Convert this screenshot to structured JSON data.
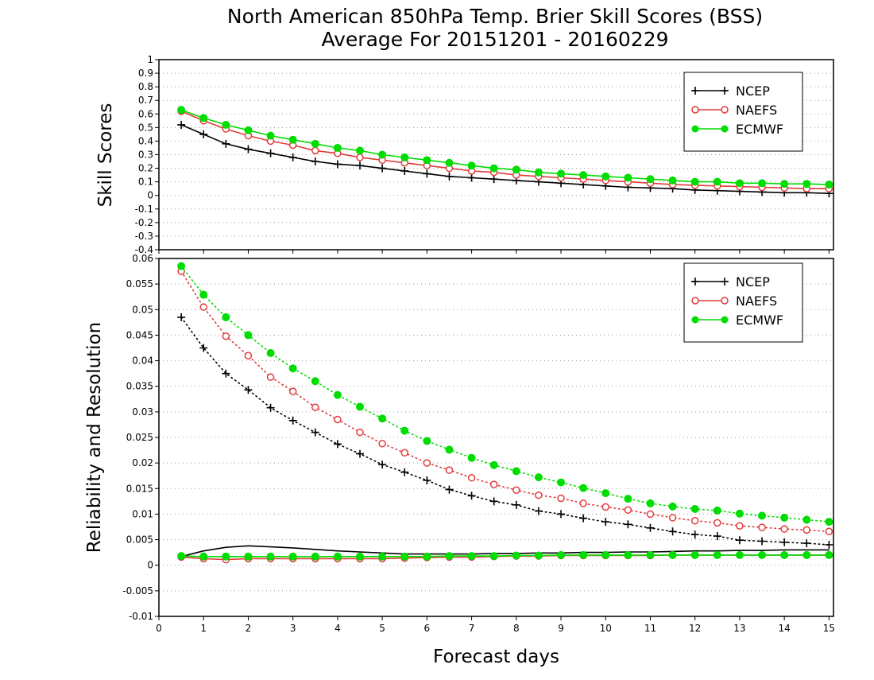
{
  "title": {
    "line1": "North American 850hPa Temp. Brier Skill Scores (BSS)",
    "line2": "Average For 20151201 - 20160229"
  },
  "chart_data": [
    {
      "type": "line",
      "panel": "top",
      "ylabel": "Skill Scores",
      "xlabel": "Forecast days",
      "xlim": [
        0,
        15.1
      ],
      "ylim": [
        -0.4,
        1
      ],
      "xticks": [
        0,
        1,
        2,
        3,
        4,
        5,
        6,
        7,
        8,
        9,
        10,
        11,
        12,
        13,
        14,
        15
      ],
      "yticks": [
        -0.4,
        -0.3,
        -0.2,
        -0.1,
        0,
        0.1,
        0.2,
        0.3,
        0.4,
        0.5,
        0.6,
        0.7,
        0.8,
        0.9,
        1
      ],
      "ytick_labels": [
        "-0.4",
        "-0.3",
        "-0.2",
        "-0.1",
        "0",
        "0.1",
        "0.2",
        "0.3",
        "0.4",
        "0.5",
        "0.6",
        "0.7",
        "0.8",
        "0.9",
        "1"
      ],
      "grid": "dotted-horizontal",
      "legend": "top-right",
      "x": [
        0.5,
        1,
        1.5,
        2,
        2.5,
        3,
        3.5,
        4,
        4.5,
        5,
        5.5,
        6,
        6.5,
        7,
        7.5,
        8,
        8.5,
        9,
        9.5,
        10,
        10.5,
        11,
        11.5,
        12,
        12.5,
        13,
        13.5,
        14,
        14.5,
        15
      ],
      "series": [
        {
          "name": "NCEP",
          "color": "#000000",
          "marker": "plus",
          "values": [
            0.52,
            0.45,
            0.38,
            0.34,
            0.31,
            0.28,
            0.25,
            0.23,
            0.22,
            0.2,
            0.18,
            0.16,
            0.14,
            0.13,
            0.12,
            0.11,
            0.1,
            0.09,
            0.08,
            0.07,
            0.06,
            0.055,
            0.05,
            0.04,
            0.035,
            0.03,
            0.025,
            0.02,
            0.02,
            0.015
          ]
        },
        {
          "name": "NAEFS",
          "color": "#e03c3c",
          "marker": "open-circle",
          "values": [
            0.62,
            0.55,
            0.49,
            0.44,
            0.4,
            0.37,
            0.33,
            0.31,
            0.28,
            0.26,
            0.24,
            0.22,
            0.2,
            0.18,
            0.17,
            0.15,
            0.14,
            0.13,
            0.12,
            0.11,
            0.1,
            0.09,
            0.08,
            0.075,
            0.07,
            0.065,
            0.06,
            0.055,
            0.05,
            0.05
          ]
        },
        {
          "name": "ECMWF",
          "color": "#00dd00",
          "marker": "filled-circle",
          "values": [
            0.63,
            0.57,
            0.52,
            0.48,
            0.44,
            0.41,
            0.38,
            0.35,
            0.33,
            0.3,
            0.28,
            0.26,
            0.24,
            0.22,
            0.2,
            0.19,
            0.17,
            0.16,
            0.15,
            0.14,
            0.13,
            0.12,
            0.11,
            0.1,
            0.1,
            0.09,
            0.09,
            0.085,
            0.085,
            0.08
          ]
        }
      ]
    },
    {
      "type": "line",
      "panel": "bottom",
      "ylabel": "Reliability and Resolution",
      "xlabel": "Forecast days",
      "xlim": [
        0,
        15.1
      ],
      "ylim": [
        -0.01,
        0.06
      ],
      "xticks": [
        0,
        1,
        2,
        3,
        4,
        5,
        6,
        7,
        8,
        9,
        10,
        11,
        12,
        13,
        14,
        15
      ],
      "yticks": [
        -0.01,
        -0.005,
        0,
        0.005,
        0.01,
        0.015,
        0.02,
        0.025,
        0.03,
        0.035,
        0.04,
        0.045,
        0.05,
        0.055,
        0.06
      ],
      "ytick_labels": [
        "-0.01",
        "-0.005",
        "0",
        "0.005",
        "0.01",
        "0.015",
        "0.02",
        "0.025",
        "0.03",
        "0.035",
        "0.04",
        "0.045",
        "0.05",
        "0.055",
        "0.06"
      ],
      "grid": "dotted-horizontal",
      "legend": "top-right",
      "x": [
        0.5,
        1,
        1.5,
        2,
        2.5,
        3,
        3.5,
        4,
        4.5,
        5,
        5.5,
        6,
        6.5,
        7,
        7.5,
        8,
        8.5,
        9,
        9.5,
        10,
        10.5,
        11,
        11.5,
        12,
        12.5,
        13,
        13.5,
        14,
        14.5,
        15
      ],
      "series": [
        {
          "name": "NCEP",
          "color": "#000000",
          "marker": "plus",
          "line": "dotted",
          "values": [
            0.0485,
            0.0425,
            0.0375,
            0.0343,
            0.0308,
            0.0283,
            0.026,
            0.0237,
            0.0218,
            0.0197,
            0.0182,
            0.0166,
            0.0148,
            0.0136,
            0.0125,
            0.0118,
            0.0106,
            0.01,
            0.0092,
            0.0085,
            0.008,
            0.0073,
            0.0066,
            0.006,
            0.0057,
            0.0049,
            0.0047,
            0.0045,
            0.0043,
            0.004
          ]
        },
        {
          "name": "NAEFS",
          "color": "#e03c3c",
          "marker": "open-circle",
          "line": "dotted",
          "values": [
            0.0575,
            0.0505,
            0.0448,
            0.041,
            0.0368,
            0.034,
            0.0309,
            0.0285,
            0.026,
            0.0238,
            0.022,
            0.02,
            0.0186,
            0.0171,
            0.0158,
            0.0147,
            0.0137,
            0.0131,
            0.0121,
            0.0114,
            0.0108,
            0.01,
            0.0093,
            0.0087,
            0.0083,
            0.0077,
            0.0074,
            0.0071,
            0.0069,
            0.0066
          ]
        },
        {
          "name": "ECMWF",
          "color": "#00dd00",
          "marker": "filled-circle",
          "line": "dotted",
          "values": [
            0.0585,
            0.0529,
            0.0485,
            0.045,
            0.0415,
            0.0385,
            0.036,
            0.0333,
            0.031,
            0.0287,
            0.0263,
            0.0243,
            0.0226,
            0.021,
            0.0196,
            0.0184,
            0.0172,
            0.0162,
            0.0151,
            0.0141,
            0.013,
            0.0121,
            0.0115,
            0.011,
            0.0107,
            0.0101,
            0.0097,
            0.0093,
            0.0089,
            0.0085
          ]
        },
        {
          "color": "#000000",
          "marker": "none",
          "line": "solid",
          "values": [
            0.0017,
            0.0028,
            0.0035,
            0.0038,
            0.0036,
            0.0034,
            0.0031,
            0.0028,
            0.0026,
            0.0024,
            0.0022,
            0.0022,
            0.0022,
            0.0022,
            0.0023,
            0.0023,
            0.0024,
            0.0024,
            0.0025,
            0.0025,
            0.0026,
            0.0026,
            0.0027,
            0.0028,
            0.0028,
            0.0029,
            0.0029,
            0.003,
            0.003,
            0.003
          ]
        },
        {
          "color": "#e03c3c",
          "marker": "open-circle",
          "line": "solid",
          "values": [
            0.0016,
            0.0013,
            0.0011,
            0.0013,
            0.0013,
            0.0013,
            0.0013,
            0.0013,
            0.0013,
            0.0013,
            0.0014,
            0.0015,
            0.0016,
            0.0016,
            0.0017,
            0.0018,
            0.0018,
            0.0019,
            0.0019,
            0.0019,
            0.0019,
            0.0019,
            0.002,
            0.002,
            0.002,
            0.002,
            0.002,
            0.002,
            0.002,
            0.002
          ]
        },
        {
          "color": "#00dd00",
          "marker": "filled-circle",
          "line": "solid",
          "values": [
            0.0018,
            0.0017,
            0.0017,
            0.0017,
            0.0017,
            0.0017,
            0.0017,
            0.0017,
            0.0017,
            0.0017,
            0.0017,
            0.0017,
            0.0018,
            0.0018,
            0.0018,
            0.0019,
            0.0019,
            0.002,
            0.002,
            0.002,
            0.002,
            0.002,
            0.002,
            0.002,
            0.002,
            0.002,
            0.002,
            0.002,
            0.002,
            0.002
          ]
        }
      ]
    }
  ]
}
